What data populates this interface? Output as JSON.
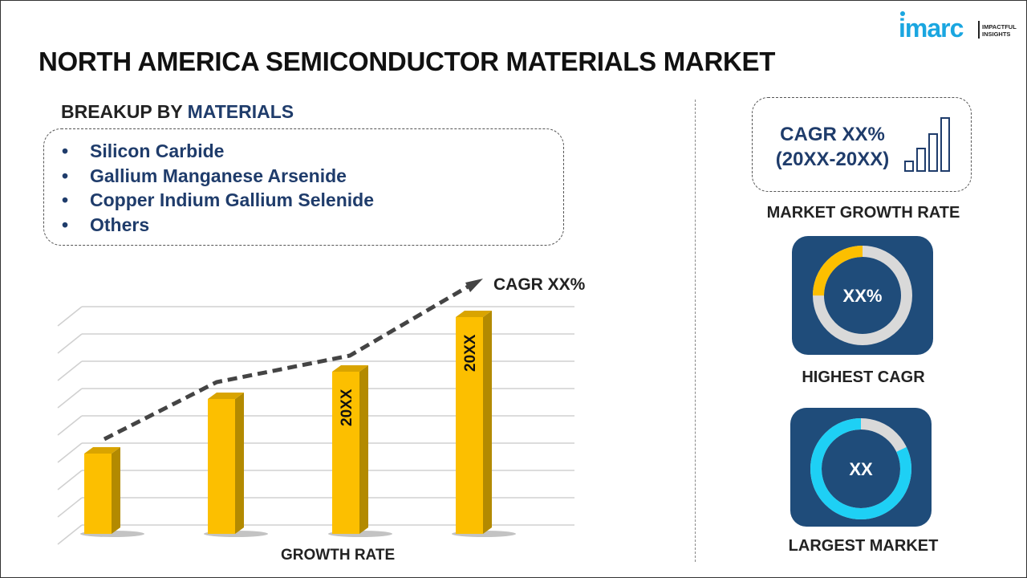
{
  "title": "NORTH AMERICA SEMICONDUCTOR MATERIALS MARKET",
  "logo": {
    "brand": "imarc",
    "tagline_1": "IMPACTFUL",
    "tagline_2": "INSIGHTS",
    "color": "#1aa6e0"
  },
  "breakup": {
    "prefix": "BREAKUP BY ",
    "highlight": "MATERIALS",
    "items": [
      "Silicon Carbide",
      "Gallium Manganese Arsenide",
      "Copper Indium Gallium Selenide",
      "Others"
    ]
  },
  "chart_data": {
    "type": "bar",
    "categories": [
      "",
      "",
      "",
      ""
    ],
    "values": [
      3,
      5,
      6,
      8
    ],
    "bar_labels": [
      "",
      "",
      "20XX",
      "20XX"
    ],
    "trend_label": "CAGR XX%",
    "xlabel": "GROWTH RATE",
    "ylabel": "",
    "ylim": [
      0,
      8.5
    ],
    "grid": true,
    "bar_color": "#fcbf00",
    "trend_color": "#444444"
  },
  "growth": {
    "line1": "CAGR XX%",
    "line2": "(20XX-20XX)",
    "label": "MARKET GROWTH RATE",
    "icon": "bar-growth-icon"
  },
  "highest": {
    "value": "XX%",
    "label": "HIGHEST CAGR",
    "fraction": 0.25,
    "accent": "#fcbf00"
  },
  "largest": {
    "value": "XX",
    "label": "LARGEST MARKET",
    "fraction": 0.82,
    "accent": "#1ed0f5"
  },
  "colors": {
    "navy": "#1f3c6b",
    "card": "#1f4c7a",
    "ring_bg": "#d9d9d9"
  }
}
